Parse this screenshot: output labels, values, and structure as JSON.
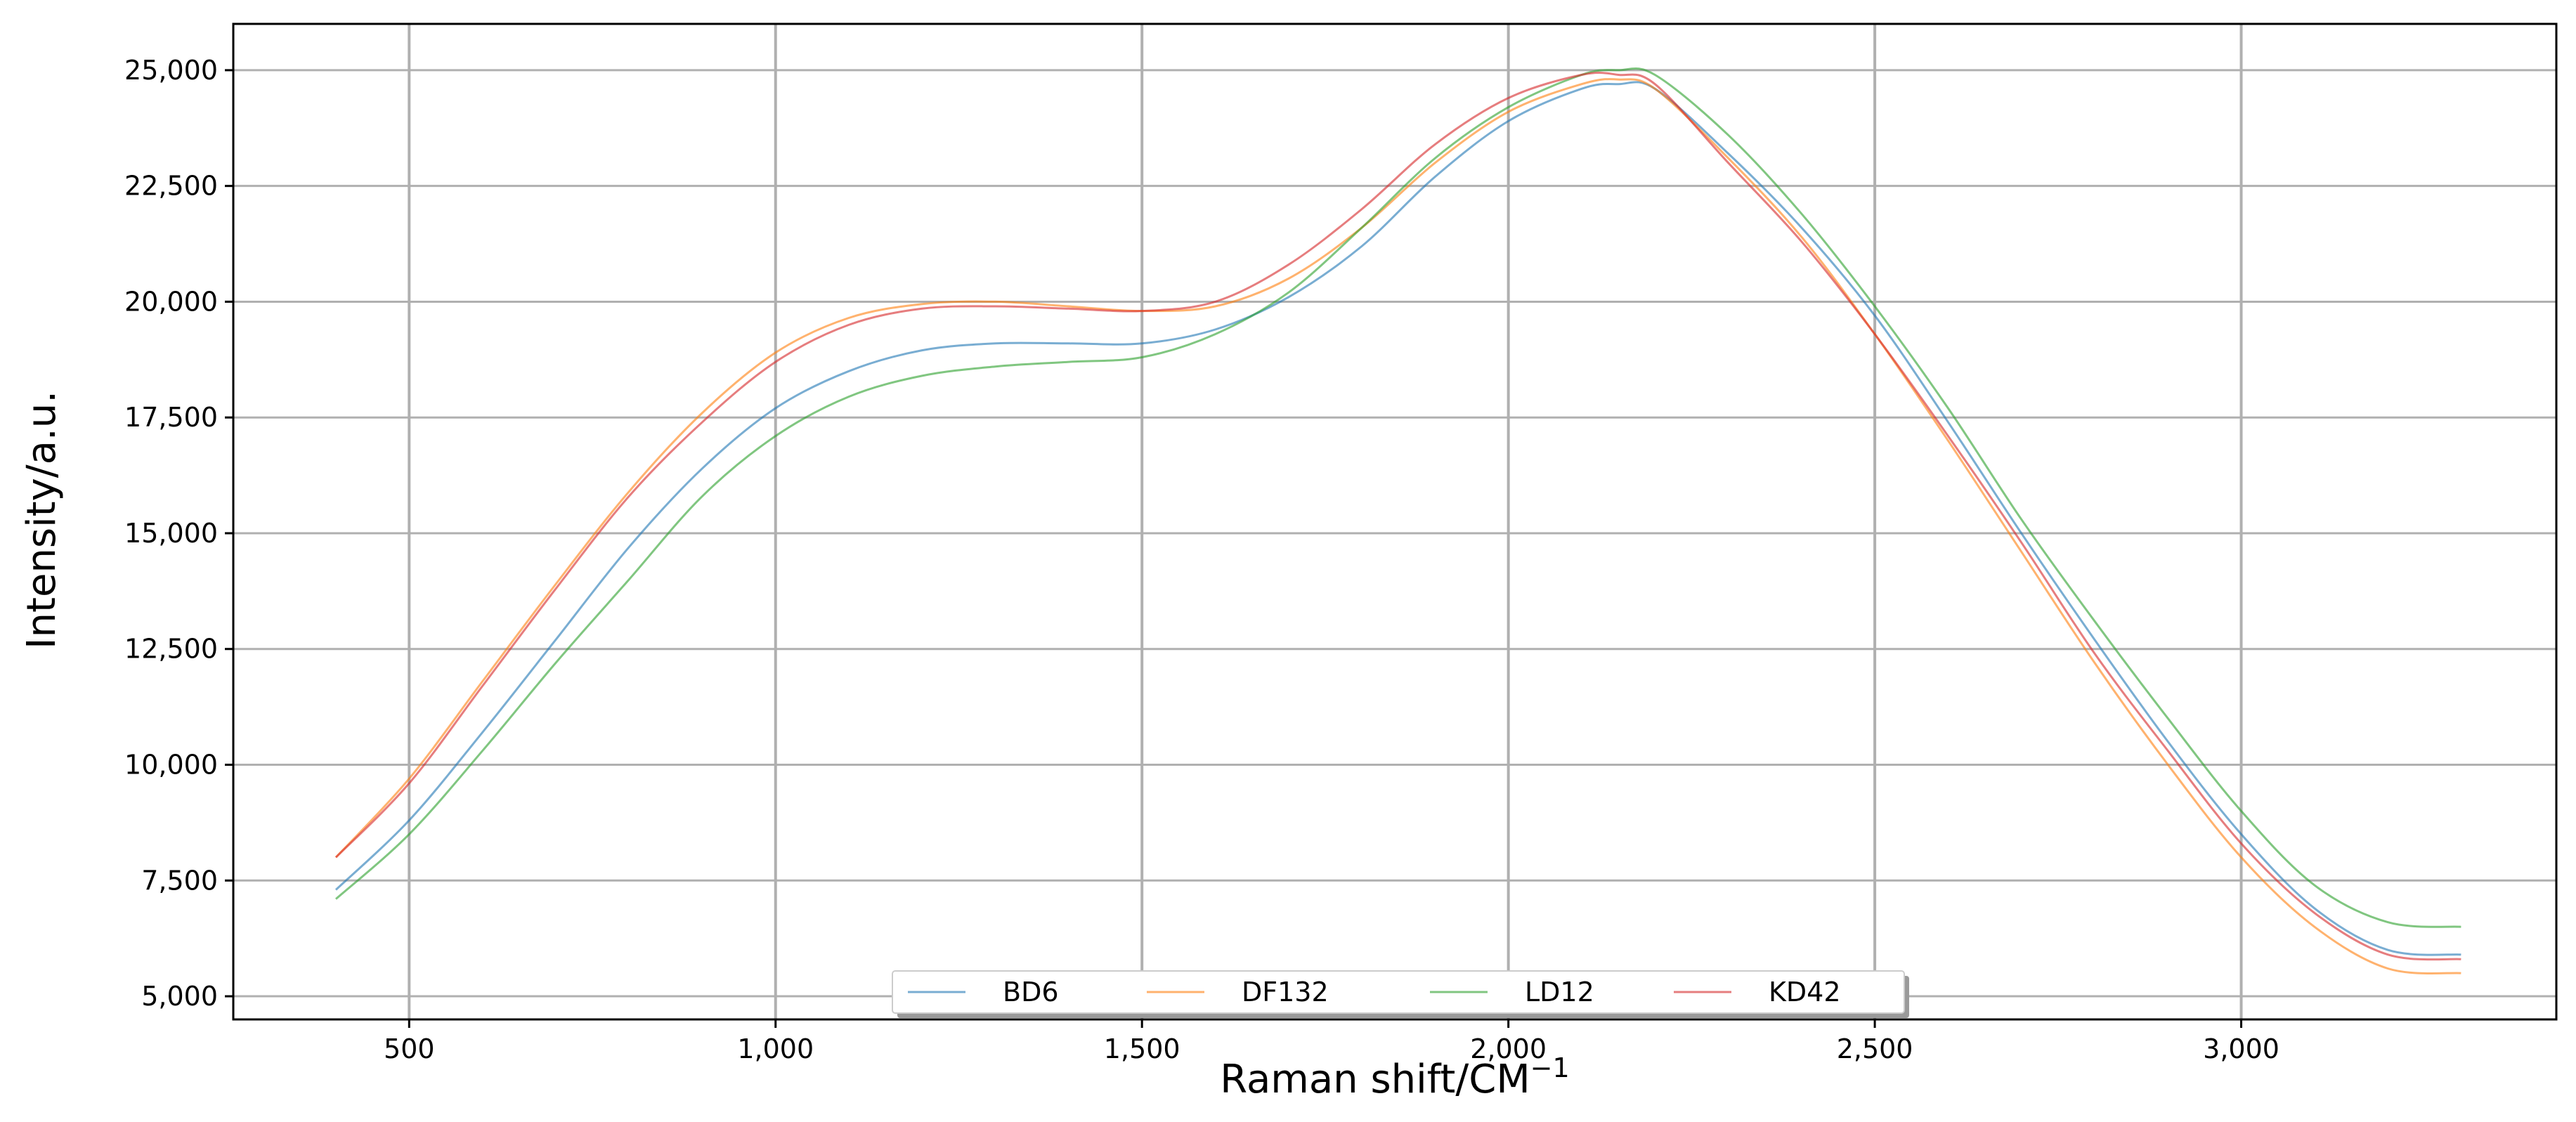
{
  "chart_data": {
    "type": "line",
    "title": "",
    "xlabel": "Raman shift/CM",
    "xlabel_superscript": "−1",
    "ylabel": "Intensity/a.u.",
    "xlim": [
      260,
      3430
    ],
    "ylim": [
      4500,
      26000
    ],
    "x_ticks": [
      500,
      1000,
      1500,
      2000,
      2500,
      3000
    ],
    "x_tick_labels": [
      "500",
      "1,000",
      "1,500",
      "2,000",
      "2,500",
      "3,000"
    ],
    "y_ticks": [
      5000,
      7500,
      10000,
      12500,
      15000,
      17500,
      20000,
      22500,
      25000
    ],
    "y_tick_labels": [
      "5,000",
      "7,500",
      "10,000",
      "12,500",
      "15,000",
      "17,500",
      "20,000",
      "22,500",
      "25,000"
    ],
    "grid": true,
    "legend_position": "bottom-center",
    "x": [
      400,
      500,
      600,
      700,
      800,
      900,
      1000,
      1100,
      1200,
      1300,
      1400,
      1500,
      1600,
      1700,
      1800,
      1900,
      2000,
      2100,
      2150,
      2200,
      2300,
      2400,
      2500,
      2600,
      2700,
      2800,
      2900,
      3000,
      3100,
      3200,
      3300
    ],
    "series": [
      {
        "name": "BD6",
        "color": "#1f77b4",
        "values": [
          7300,
          8800,
          10700,
          12700,
          14700,
          16400,
          17700,
          18500,
          18950,
          19100,
          19100,
          19100,
          19400,
          20100,
          21200,
          22700,
          23900,
          24600,
          24700,
          24600,
          23200,
          21600,
          19700,
          17400,
          15000,
          12700,
          10500,
          8500,
          6900,
          6000,
          5900
        ]
      },
      {
        "name": "DF132",
        "color": "#ff7f0e",
        "values": [
          8000,
          9700,
          11800,
          13900,
          15900,
          17600,
          18900,
          19650,
          19950,
          20000,
          19900,
          19800,
          19900,
          20500,
          21600,
          23000,
          24100,
          24700,
          24800,
          24600,
          23100,
          21400,
          19300,
          17000,
          14600,
          12200,
          10000,
          8000,
          6500,
          5600,
          5500
        ]
      },
      {
        "name": "LD12",
        "color": "#2ca02c",
        "values": [
          7100,
          8500,
          10300,
          12200,
          14000,
          15800,
          17100,
          17950,
          18400,
          18600,
          18700,
          18800,
          19300,
          20200,
          21600,
          23100,
          24200,
          24900,
          25000,
          24900,
          23600,
          21900,
          19900,
          17700,
          15300,
          13100,
          11000,
          9000,
          7400,
          6600,
          6500
        ]
      },
      {
        "name": "KD42",
        "color": "#d62728",
        "values": [
          8000,
          9600,
          11700,
          13800,
          15800,
          17400,
          18700,
          19500,
          19850,
          19900,
          19850,
          19800,
          20000,
          20800,
          22000,
          23400,
          24400,
          24900,
          24900,
          24700,
          23000,
          21300,
          19300,
          17100,
          14800,
          12400,
          10300,
          8300,
          6800,
          5900,
          5800
        ]
      }
    ]
  }
}
